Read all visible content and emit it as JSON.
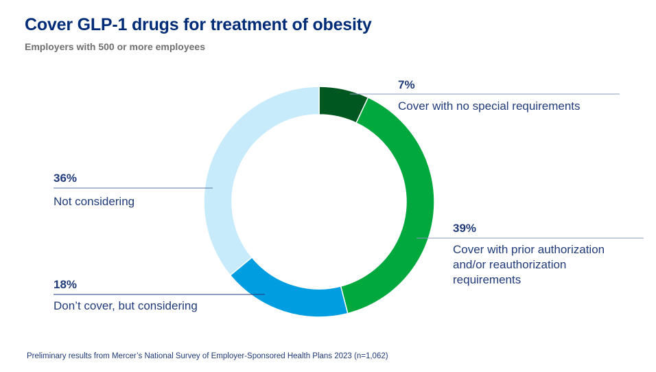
{
  "title": "Cover GLP-1 drugs for treatment of obesity",
  "subtitle": "Employers with 500 or more employees",
  "footnote": "Preliminary results from Mercer’s National Survey of Employer-Sponsored Health Plans 2023 (n=1,062)",
  "chart_data": {
    "type": "pie",
    "variant": "donut",
    "title": "Cover GLP-1 drugs for treatment of obesity",
    "subtitle": "Employers with 500 or more employees",
    "unit": "%",
    "start": "top, clockwise",
    "slices": [
      {
        "label": "Cover with no special requirements",
        "value": 7,
        "display": "7%",
        "color": "#00571f"
      },
      {
        "label": "Cover with prior authorization and/or reauthorization requirements",
        "value": 39,
        "display": "39%",
        "color": "#00a83e"
      },
      {
        "label": "Don’t cover, but considering",
        "value": 18,
        "display": "18%",
        "color": "#009de0"
      },
      {
        "label": "Not considering",
        "value": 36,
        "display": "36%",
        "color": "#c8ebfb"
      }
    ],
    "label_lines": [
      [
        "Cover with no special requirements"
      ],
      [
        "Cover with prior authorization",
        "and/or reauthorization",
        "requirements"
      ],
      [
        "Don’t cover, but considering"
      ],
      [
        "Not considering"
      ]
    ]
  }
}
